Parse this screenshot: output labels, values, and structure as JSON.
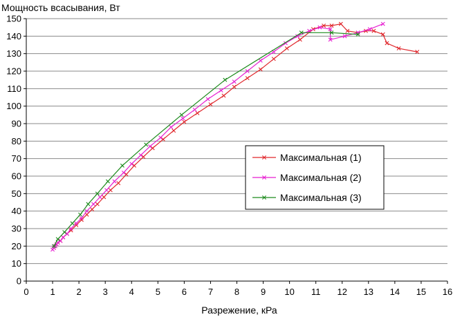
{
  "chart_data": {
    "type": "line",
    "title": "",
    "xlabel": "Разрежение, кРа",
    "ylabel": "Мощность всасывания, Вт",
    "xlim": [
      0,
      16
    ],
    "ylim": [
      0,
      150
    ],
    "x_ticks": [
      "0",
      "1",
      "2",
      "3",
      "4",
      "5",
      "6",
      "7",
      "8",
      "9",
      "10",
      "11",
      "12",
      "13",
      "14",
      "15",
      "16"
    ],
    "y_ticks": [
      "0",
      "10",
      "20",
      "30",
      "40",
      "50",
      "60",
      "70",
      "80",
      "90",
      "100",
      "110",
      "120",
      "130",
      "140",
      "150"
    ],
    "grid": "horizontal",
    "legend_position": "right",
    "series": [
      {
        "name": "Максимальная (1)",
        "color": "#e0262b",
        "x": [
          1.05,
          1.1,
          1.15,
          1.2,
          1.3,
          1.4,
          1.55,
          1.7,
          1.9,
          2.1,
          2.3,
          2.5,
          2.7,
          2.95,
          3.2,
          3.5,
          3.8,
          4.1,
          4.45,
          4.8,
          5.2,
          5.6,
          6.0,
          6.5,
          7.0,
          7.5,
          7.9,
          8.4,
          8.9,
          9.4,
          9.9,
          10.4,
          10.9,
          11.3,
          11.6,
          11.95,
          12.2,
          12.6,
          12.9,
          13.2,
          13.55,
          13.7,
          14.15,
          14.85
        ],
        "y": [
          19,
          20,
          21,
          22,
          23,
          25,
          27,
          29,
          32,
          35,
          38,
          41,
          44,
          48,
          52,
          56,
          61,
          66,
          71,
          76,
          81,
          86,
          91,
          96,
          101,
          106,
          111,
          116,
          121,
          127,
          133,
          138,
          144,
          146,
          146,
          147,
          143,
          142,
          143,
          143,
          141,
          136,
          133,
          131
        ]
      },
      {
        "name": "Максимальная (2)",
        "color": "#e61fd1",
        "x": [
          1.0,
          1.05,
          1.1,
          1.15,
          1.2,
          1.3,
          1.4,
          1.55,
          1.7,
          1.9,
          2.1,
          2.3,
          2.55,
          2.8,
          3.05,
          3.35,
          3.7,
          4.0,
          4.35,
          4.7,
          5.1,
          5.5,
          5.95,
          6.4,
          6.9,
          7.4,
          7.9,
          8.4,
          8.9,
          9.4,
          9.85,
          10.3,
          10.75,
          11.15,
          11.55,
          11.55,
          12.1,
          12.6,
          13.05,
          13.55
        ],
        "y": [
          18,
          19,
          20,
          21,
          22,
          23,
          25,
          27,
          30,
          33,
          36,
          40,
          44,
          48,
          52,
          57,
          62,
          67,
          72,
          77,
          82,
          88,
          93,
          98,
          104,
          109,
          114,
          120,
          126,
          131,
          136,
          140,
          143,
          145,
          144,
          138,
          140,
          142,
          144,
          147
        ]
      },
      {
        "name": "Максимальная (3)",
        "color": "#1c8a1c",
        "x": [
          1.05,
          1.2,
          1.45,
          1.75,
          2.05,
          2.35,
          2.7,
          3.1,
          3.65,
          4.55,
          5.9,
          7.55,
          10.45,
          11.6,
          12.6
        ],
        "y": [
          20,
          24,
          28,
          33,
          38,
          44,
          50,
          57,
          66,
          78,
          95,
          115,
          142,
          142,
          141
        ]
      }
    ]
  }
}
